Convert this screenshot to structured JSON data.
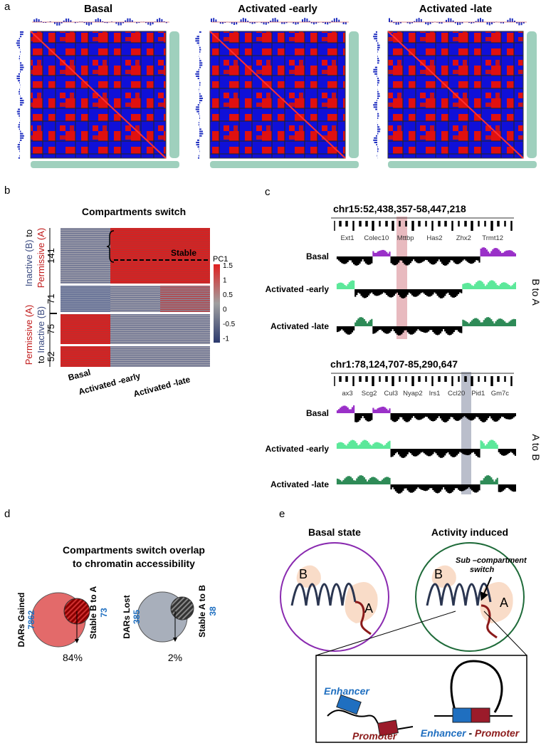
{
  "a": {
    "label": "a",
    "titles": [
      "Basal",
      "Activated -early",
      "Activated -late"
    ]
  },
  "b": {
    "label": "b",
    "title": "Compartments switch",
    "group_labels": [
      [
        "Inactive (B)",
        "to",
        "Permissive (A)"
      ],
      [
        "Permissive (A)",
        "to",
        "Inactive (B)"
      ]
    ],
    "counts": [
      "141",
      "71",
      "75",
      "52"
    ],
    "annotation": "Stable",
    "colorbar": {
      "title": "PC1",
      "ticks": [
        "1.5",
        "1",
        "0.5",
        "0",
        "-0.5",
        "-1"
      ]
    },
    "columns": [
      "Basal",
      "Activated -early",
      "Activated -late"
    ]
  },
  "c": {
    "label": "c",
    "regions": [
      {
        "coords": "chr15:52,438,357-58,447,218",
        "genes": [
          "Ext1",
          "Colec10",
          "Mttbp",
          "Has2",
          "Zhx2",
          "Trmt12"
        ],
        "tracks": [
          "Basal",
          "Activated -early",
          "Activated -late"
        ],
        "side": "B to A"
      },
      {
        "coords": "chr1:78,124,707-85,290,647",
        "genes": [
          "ax3",
          "Scg2",
          "Cul3",
          "Nyap2",
          "Irs1",
          "Ccl20",
          "Pid1",
          "Gm7c"
        ],
        "tracks": [
          "Basal",
          "Activated -early",
          "Activated -late"
        ],
        "side": "A to B"
      }
    ]
  },
  "d": {
    "label": "d",
    "title": [
      "Compartments switch overlap",
      "to chromatin accessibility"
    ],
    "venns": [
      {
        "big": "DARs Gained",
        "big_n": "7862",
        "small": "Stable B to A",
        "small_n": "73",
        "overlap": "84%"
      },
      {
        "big": "DARs Lost",
        "big_n": "385",
        "small": "Stable A to B",
        "small_n": "38",
        "overlap": "2%"
      }
    ]
  },
  "e": {
    "label": "e",
    "states": [
      "Basal state",
      "Activity induced"
    ],
    "b": "B",
    "a": "A",
    "switch": [
      "Sub –compartment",
      "switch"
    ],
    "enhancer": "Enhancer",
    "promoter": "Promoter",
    "loop": [
      "Enhancer",
      "-",
      "Promoter"
    ]
  }
}
